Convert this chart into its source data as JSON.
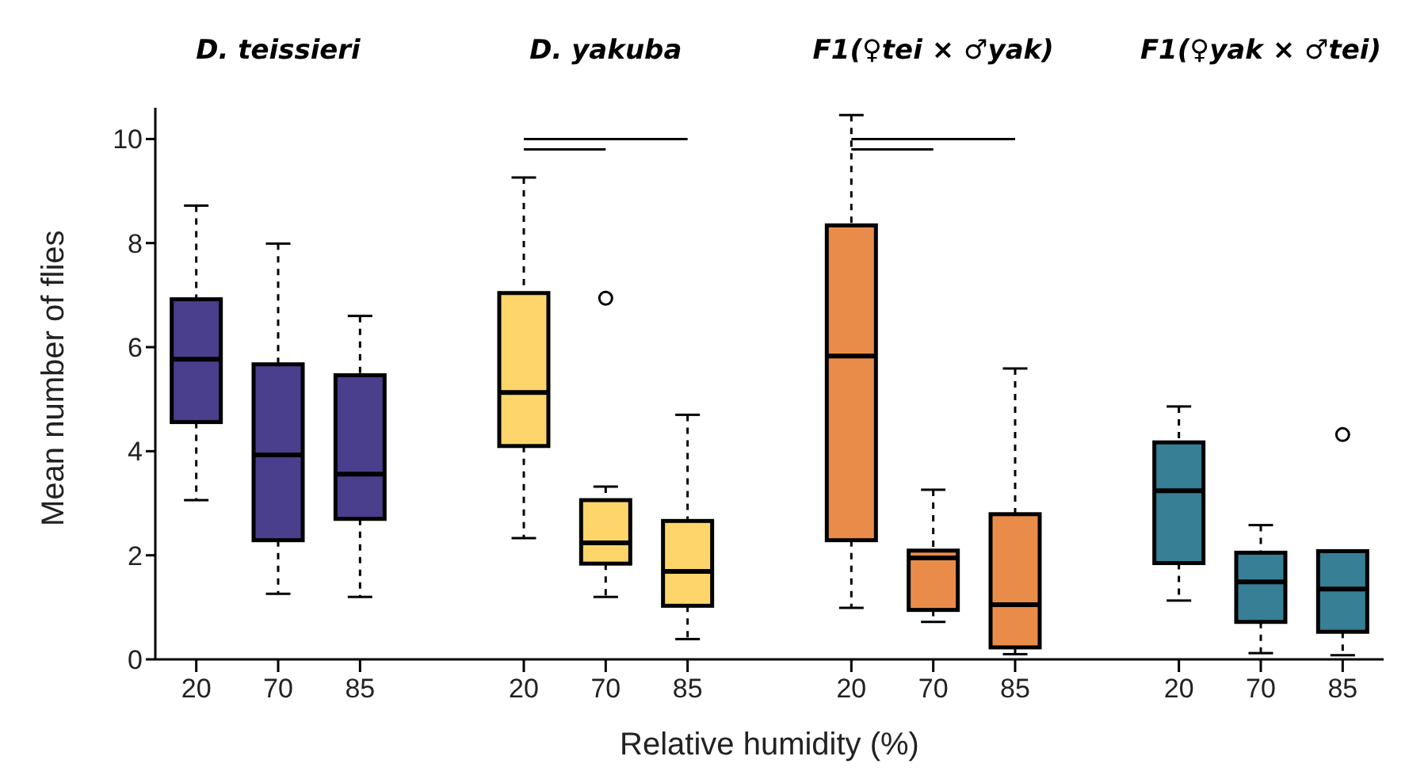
{
  "chart_data": {
    "type": "box",
    "categories": [
      "20",
      "70",
      "85",
      null,
      "20",
      "70",
      "85",
      null,
      "20",
      "70",
      "85",
      null,
      "20",
      "70",
      "85"
    ],
    "colors": [
      "#4a3f8c",
      "#4a3f8c",
      "#4a3f8c",
      null,
      "#fdd56a",
      "#fdd56a",
      "#fdd56a",
      null,
      "#e98c4a",
      "#e98c4a",
      "#e98c4a",
      null,
      "#367f94",
      "#367f94",
      "#367f94"
    ],
    "boxes": [
      {
        "low": 3.06,
        "q1": 4.56,
        "median": 5.77,
        "q3": 6.92,
        "high": 8.72
      },
      {
        "low": 1.26,
        "q1": 2.29,
        "median": 3.93,
        "q3": 5.67,
        "high": 7.99
      },
      {
        "low": 1.2,
        "q1": 2.7,
        "median": 3.56,
        "q3": 5.46,
        "high": 6.6
      },
      null,
      {
        "low": 2.33,
        "q1": 4.1,
        "median": 5.13,
        "q3": 7.04,
        "high": 9.26
      },
      {
        "low": 1.2,
        "q1": 1.84,
        "median": 2.24,
        "q3": 3.06,
        "high": 3.32,
        "outliers": [
          6.94
        ]
      },
      {
        "low": 0.39,
        "q1": 1.03,
        "median": 1.69,
        "q3": 2.66,
        "high": 4.7
      },
      null,
      {
        "low": 0.99,
        "q1": 2.29,
        "median": 5.83,
        "q3": 8.34,
        "high": 10.46
      },
      {
        "low": 0.72,
        "q1": 0.95,
        "median": 1.95,
        "q3": 2.09,
        "high": 3.26
      },
      {
        "low": 0.1,
        "q1": 0.23,
        "median": 1.05,
        "q3": 2.79,
        "high": 5.59
      },
      null,
      {
        "low": 1.13,
        "q1": 1.85,
        "median": 3.24,
        "q3": 4.17,
        "high": 4.86
      },
      {
        "low": 0.12,
        "q1": 0.72,
        "median": 1.49,
        "q3": 2.05,
        "high": 2.58
      },
      {
        "low": 0.08,
        "q1": 0.53,
        "median": 1.35,
        "q3": 2.08,
        "high": 2.09,
        "outliers": [
          4.32
        ]
      }
    ],
    "annotations": [
      "D. teissieri",
      "D. yakuba",
      "F1(♀tei × ♂yak)",
      "F1(♀yak × ♂tei)"
    ],
    "xlabel": "Relative humidity (%)",
    "ylabel": "Mean number of flies",
    "ylim": [
      0,
      10.6
    ],
    "yticks": [
      0,
      2,
      4,
      6,
      8,
      10
    ]
  }
}
